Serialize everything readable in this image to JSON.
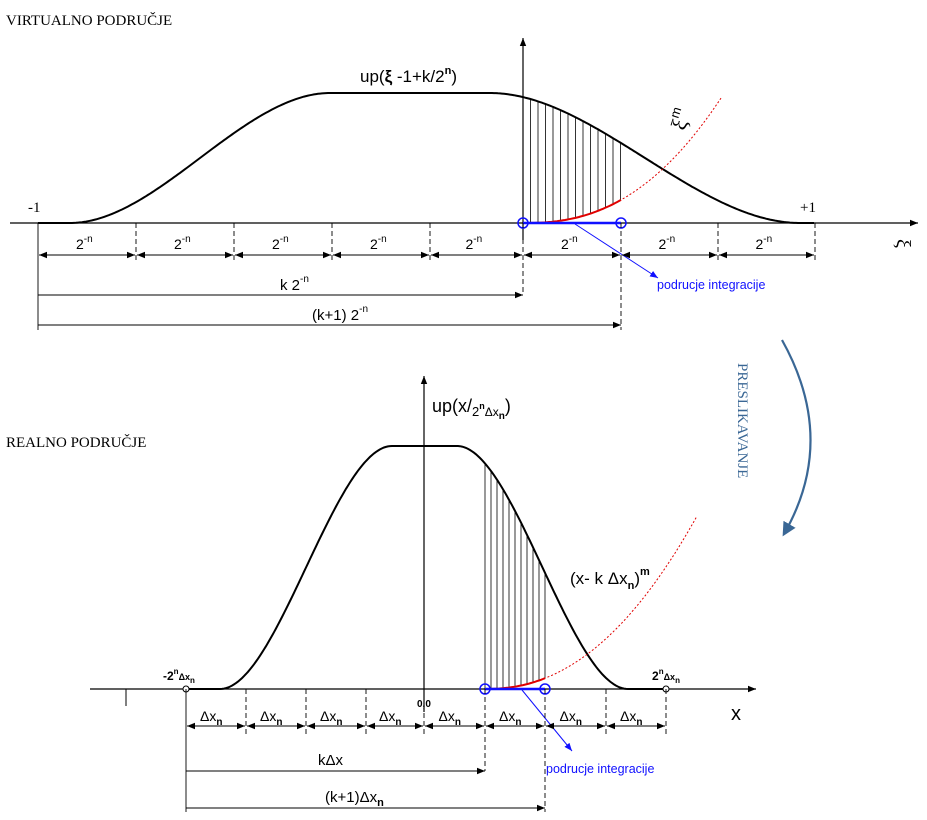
{
  "top": {
    "title": "VIRTUALNO PODRUČJE",
    "curve_label": {
      "pre": "up(",
      "xi": "ξ",
      "mid": " -1+k/2",
      "sup": "n",
      "post": ")"
    },
    "power_label": {
      "base": "ξ",
      "sup": "m"
    },
    "axis_label": "ξ",
    "left_end": "-1",
    "right_end": "+1",
    "segment_base": "2",
    "segment_exp": "-n",
    "k_label": {
      "base": "k 2",
      "sup": "-n"
    },
    "k1_label": {
      "base": "(k+1) 2",
      "sup": "-n"
    },
    "integration_label": "podrucje integracije"
  },
  "mapping_label": "PRESLIKAVANJE",
  "bottom": {
    "title": "REALNO PODRUČJE",
    "curve_label": {
      "pre": "up(x",
      "slash": "/",
      "sub_base": "2",
      "sub_sup": "n",
      "sub_dx": "Δx",
      "sub_n": "n",
      "post": ")"
    },
    "power_label": {
      "pre": "(x- k Δx",
      "sub": "n",
      "post": ")",
      "sup": "m"
    },
    "axis_label": "x",
    "origin_label": "0,0",
    "left_end": {
      "pre": "-2",
      "sup": "n",
      "dx": "Δx",
      "sub": "n"
    },
    "right_end": {
      "pre": "2",
      "sup": "n",
      "dx": "Δx",
      "sub": "n"
    },
    "segment_base": "Δx",
    "segment_sub": "n",
    "k_label": "kΔx",
    "k1_label": {
      "base": "(k+1)Δx",
      "sub": "n"
    },
    "integration_label": "podrucje integracije"
  }
}
